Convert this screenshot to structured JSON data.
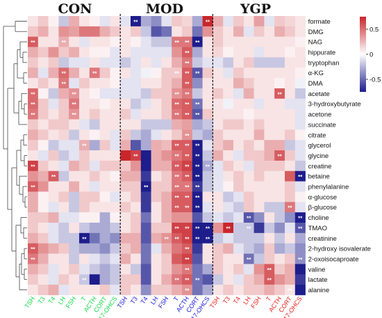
{
  "chart_data": {
    "type": "heatmap",
    "groups": [
      {
        "name": "CON",
        "color": "#17d94a"
      },
      {
        "name": "MOD",
        "color": "#1a1ad6"
      },
      {
        "name": "YGP",
        "color": "#e8231f"
      }
    ],
    "columns": [
      "TSH",
      "T3",
      "T4",
      "LH",
      "FSH",
      "T",
      "ACTH",
      "CORT",
      "17-OHCS"
    ],
    "rows": [
      "formate",
      "DMG",
      "NAG",
      "hippurate",
      "tryptophan",
      "α-KG",
      "DMA",
      "acetate",
      "3-hydroxybutyrate",
      "acetone",
      "succinate",
      "citrate",
      "glycerol",
      "glycine",
      "creatine",
      "betaine",
      "phenylalanine",
      "α-glucose",
      "β-glucose",
      "choline",
      "TMAO",
      "creatinine",
      "2-hydroxy isovalerate",
      "2-oxoisocaproate",
      "valine",
      "lactate",
      "alanine"
    ],
    "colorbar": {
      "ticks": [
        "0.5",
        "0",
        "-0.5"
      ],
      "min": -0.8,
      "max": 0.8,
      "colors": [
        "#1d1d8c",
        "#ffffff",
        "#c8262b"
      ]
    },
    "star_label": "*",
    "values": [
      [
        0.1,
        0.2,
        0.05,
        -0.2,
        0.3,
        0.1,
        0.05,
        -0.1,
        0.1,
        -0.1,
        -1.0,
        -0.3,
        -0.4,
        -0.1,
        0.2,
        0.15,
        -0.3,
        0.8,
        0.3,
        -0.1,
        0.2,
        0.1,
        0.35,
        -0.1,
        0.2,
        0.15,
        0.1
      ],
      [
        0.2,
        0.3,
        0.1,
        0.4,
        0.35,
        0.5,
        0.5,
        0.3,
        0.2,
        0.1,
        0.2,
        -0.2,
        -0.6,
        -0.5,
        0.1,
        0.2,
        -0.5,
        0.4,
        0.2,
        0.1,
        0.3,
        -0.1,
        0.2,
        0.1,
        0.3,
        0.2,
        0.1
      ],
      [
        0.6,
        0.1,
        0.1,
        0.3,
        0.1,
        -0.1,
        0.1,
        0.1,
        0.05,
        0.1,
        0.05,
        -0.1,
        -0.2,
        -0.2,
        0.5,
        0.5,
        -0.8,
        0.1,
        0.2,
        0.1,
        0.1,
        0.1,
        0.1,
        0.1,
        0.1,
        0.1,
        0.05
      ],
      [
        0.3,
        0.2,
        0.4,
        0.2,
        0.3,
        0.1,
        0.05,
        0.05,
        -0.1,
        0.1,
        -0.1,
        -0.1,
        -0.1,
        -0.1,
        0.4,
        0.6,
        -0.3,
        0.1,
        0.15,
        0.05,
        0.1,
        0.1,
        -0.1,
        0.1,
        0.1,
        0.05,
        0.1
      ],
      [
        0.2,
        0.1,
        0.2,
        -0.2,
        -0.1,
        -0.1,
        0.1,
        -0.1,
        -0.1,
        -0.2,
        -0.1,
        0.1,
        -0.1,
        0.1,
        0.3,
        0.5,
        -0.2,
        -0.1,
        -0.1,
        -0.2,
        0.1,
        0.2,
        -0.2,
        -0.2,
        -0.2,
        0.1,
        0.1
      ],
      [
        0.3,
        -0.1,
        0.3,
        0.55,
        0.3,
        0.1,
        0.5,
        0.2,
        0.05,
        0.1,
        -0.1,
        -0.05,
        0.05,
        0.2,
        0.2,
        0.6,
        -0.6,
        0.2,
        0.1,
        -0.1,
        0.2,
        0.1,
        0.1,
        0.1,
        0.1,
        0.1,
        0.05
      ],
      [
        0.1,
        0.2,
        0.1,
        0.5,
        -0.1,
        0.2,
        0.1,
        0.1,
        0.05,
        -0.1,
        -0.1,
        0.1,
        0.1,
        0.2,
        0.3,
        0.6,
        -0.4,
        0.1,
        0.1,
        0.1,
        0.3,
        0.2,
        0.1,
        0.1,
        0.05,
        0.1,
        -0.05
      ],
      [
        0.55,
        0.05,
        -0.2,
        0.3,
        0.4,
        0.1,
        0.05,
        -0.1,
        -0.1,
        -0.1,
        -0.1,
        -0.2,
        0.2,
        0.2,
        0.4,
        0.5,
        -0.2,
        0.1,
        0.2,
        0.1,
        -0.1,
        0.3,
        0.1,
        0.1,
        0.6,
        0.1,
        -0.2
      ],
      [
        0.55,
        0.2,
        -0.1,
        0.2,
        0.5,
        0.1,
        0.1,
        0.05,
        0.1,
        0.1,
        -0.2,
        -0.1,
        0.1,
        0.2,
        0.55,
        0.6,
        -0.5,
        0.1,
        0.1,
        -0.05,
        0.1,
        0.1,
        -0.1,
        0.1,
        0.1,
        -0.1,
        -0.1
      ],
      [
        0.5,
        0.2,
        0.1,
        0.2,
        0.4,
        0.1,
        0.2,
        0.1,
        0.1,
        0.2,
        -0.1,
        0.1,
        0.1,
        0.2,
        0.5,
        0.6,
        -0.6,
        0.2,
        0.1,
        0.1,
        0.1,
        0.05,
        0.1,
        0.1,
        0.1,
        0.1,
        -0.1
      ],
      [
        0.2,
        0.1,
        0.2,
        0.2,
        0.1,
        -0.1,
        -0.2,
        0.1,
        0.1,
        0.1,
        0.1,
        -0.2,
        -0.2,
        -0.2,
        0.3,
        0.35,
        -0.3,
        -0.2,
        0.1,
        0.2,
        0.2,
        0.1,
        0.2,
        0.1,
        0.1,
        0.1,
        -0.1
      ],
      [
        0.3,
        0.2,
        0.1,
        0.15,
        -0.2,
        0.1,
        0.05,
        0.1,
        -0.1,
        0.2,
        -0.2,
        -0.3,
        -0.1,
        0.1,
        0.2,
        0.4,
        -0.2,
        -0.3,
        0.2,
        0.1,
        0.1,
        0.1,
        0.3,
        0.1,
        0.1,
        0.2,
        0.05
      ],
      [
        0.2,
        0.05,
        -0.2,
        -0.1,
        -0.1,
        0.3,
        -0.3,
        0.2,
        -0.1,
        0.3,
        -0.6,
        -0.3,
        0.3,
        0.25,
        0.6,
        0.6,
        -0.8,
        -0.1,
        0.2,
        0.3,
        0.1,
        0.2,
        0.1,
        0.3,
        0.3,
        -0.2,
        -0.1
      ],
      [
        0.1,
        -0.1,
        0.2,
        -0.2,
        -0.1,
        0.2,
        0.1,
        0.1,
        0.1,
        0.8,
        0.7,
        -0.8,
        0.3,
        0.4,
        0.5,
        0.6,
        -0.9,
        -0.2,
        0.3,
        0.1,
        -0.1,
        0.2,
        0.2,
        0.3,
        0.6,
        0.2,
        -0.1
      ],
      [
        0.7,
        0.2,
        0.1,
        -0.1,
        0.3,
        0.2,
        -0.1,
        0.2,
        0.2,
        0.2,
        0.4,
        -0.8,
        0.3,
        0.3,
        0.6,
        0.7,
        -0.9,
        -0.3,
        -0.1,
        0.2,
        0.1,
        -0.1,
        0.2,
        0.2,
        0.2,
        0.1,
        -0.2
      ],
      [
        0.4,
        0.3,
        0.6,
        -0.2,
        0.1,
        0.1,
        0.2,
        0.1,
        0.05,
        0.3,
        0.3,
        -0.7,
        0.1,
        0.2,
        0.5,
        0.6,
        -0.8,
        -0.2,
        -0.1,
        0.1,
        0.2,
        0.1,
        0.2,
        0.1,
        0.1,
        0.6,
        -0.9
      ],
      [
        0.6,
        0.4,
        0.1,
        0.1,
        0.3,
        0.1,
        -0.1,
        0.1,
        0.1,
        0.2,
        0.2,
        -0.8,
        0.2,
        0.2,
        0.5,
        0.5,
        -0.7,
        -0.2,
        -0.1,
        0.05,
        0.2,
        0.1,
        0.1,
        0.1,
        0.1,
        0.2,
        -0.1
      ],
      [
        0.3,
        0.05,
        0.1,
        0.2,
        -0.2,
        0.2,
        0.2,
        0.05,
        -0.1,
        0.1,
        0.2,
        -0.7,
        0.2,
        0.3,
        0.6,
        0.6,
        -0.8,
        0.1,
        0.1,
        -0.2,
        -0.1,
        0.2,
        0.1,
        0.1,
        0.1,
        0.2,
        0.05
      ],
      [
        0.3,
        0.05,
        -0.1,
        0.1,
        -0.2,
        0.2,
        0.1,
        0.1,
        0.1,
        0.2,
        0.1,
        -0.7,
        0.1,
        0.3,
        0.6,
        0.6,
        -0.8,
        -0.1,
        0.1,
        -0.1,
        -0.2,
        0.2,
        0.1,
        -0.2,
        -0.2,
        0.5,
        -0.1
      ],
      [
        0.2,
        0.2,
        0.3,
        -0.1,
        -0.1,
        0.05,
        0.05,
        -0.3,
        0.05,
        0.1,
        0.2,
        -0.5,
        0.1,
        0.3,
        0.4,
        0.4,
        -0.6,
        -0.2,
        -0.1,
        -0.2,
        -0.1,
        -0.6,
        -0.4,
        0.1,
        -0.2,
        -0.4,
        -0.9
      ],
      [
        0.2,
        0.1,
        -0.1,
        -0.2,
        0.1,
        -0.2,
        -0.3,
        -0.3,
        -0.2,
        0.1,
        0.2,
        -0.6,
        0.2,
        0.2,
        0.7,
        0.7,
        -0.9,
        -0.9,
        0.4,
        0.9,
        -0.2,
        -0.2,
        -0.7,
        -0.2,
        -0.4,
        -0.1,
        -0.6
      ],
      [
        0.3,
        0.2,
        -0.1,
        -0.2,
        -0.2,
        -1.0,
        -0.5,
        -0.3,
        -0.4,
        0.3,
        0.3,
        -0.6,
        0.3,
        0.4,
        0.6,
        0.7,
        -0.9,
        -0.8,
        -0.2,
        -0.1,
        -0.2,
        -0.2,
        -0.2,
        0.1,
        -0.2,
        0.1,
        -0.3
      ],
      [
        0.6,
        0.4,
        0.3,
        0.2,
        -0.2,
        -0.3,
        -0.3,
        -0.4,
        -0.2,
        0.2,
        0.3,
        -0.5,
        -0.1,
        0.3,
        0.5,
        0.6,
        -0.7,
        0.1,
        0.2,
        0.3,
        -0.1,
        -0.2,
        -0.3,
        0.2,
        -0.3,
        -0.2,
        -0.4
      ],
      [
        0.5,
        0.3,
        0.1,
        0.1,
        -0.2,
        0.1,
        -0.1,
        -0.2,
        -0.1,
        0.3,
        0.1,
        -0.5,
        0.1,
        0.2,
        0.6,
        0.7,
        -0.6,
        0.1,
        0.2,
        0.1,
        0.1,
        -0.5,
        -0.2,
        0.2,
        0.1,
        0.2,
        -0.4
      ],
      [
        0.3,
        0.2,
        -0.1,
        0.1,
        0.2,
        -0.1,
        -0.2,
        -0.3,
        -0.2,
        0.1,
        -0.2,
        -0.6,
        0.1,
        0.2,
        0.4,
        0.5,
        -0.5,
        -0.3,
        0.2,
        0.1,
        0.2,
        -0.1,
        0.4,
        0.6,
        0.2,
        0.3,
        -0.8
      ],
      [
        0.2,
        0.1,
        -0.1,
        0.2,
        0.1,
        -0.2,
        -1.0,
        -0.3,
        -0.2,
        0.2,
        0.2,
        -0.6,
        0.1,
        0.3,
        0.5,
        0.6,
        -0.5,
        -0.6,
        -0.2,
        0.1,
        -0.1,
        0.2,
        0.3,
        0.6,
        0.4,
        0.3,
        -0.7
      ],
      [
        0.1,
        0.2,
        0.3,
        -0.1,
        0.1,
        0.1,
        0.1,
        0.2,
        -0.1,
        0.2,
        0.1,
        -0.4,
        0.2,
        0.2,
        0.3,
        0.4,
        -0.5,
        -0.3,
        0.1,
        0.2,
        0.1,
        0.2,
        0.2,
        0.3,
        0.2,
        0.1,
        -0.9
      ]
    ],
    "stars": [
      [
        0,
        10
      ],
      [
        0,
        17
      ],
      [
        2,
        0
      ],
      [
        2,
        3
      ],
      [
        2,
        14
      ],
      [
        2,
        15
      ],
      [
        2,
        16
      ],
      [
        3,
        15
      ],
      [
        4,
        15
      ],
      [
        5,
        3
      ],
      [
        5,
        6
      ],
      [
        5,
        14
      ],
      [
        5,
        15
      ],
      [
        5,
        16
      ],
      [
        6,
        3
      ],
      [
        6,
        15
      ],
      [
        7,
        0
      ],
      [
        7,
        4
      ],
      [
        7,
        14
      ],
      [
        7,
        15
      ],
      [
        7,
        24
      ],
      [
        8,
        0
      ],
      [
        8,
        4
      ],
      [
        8,
        14
      ],
      [
        8,
        15
      ],
      [
        8,
        16
      ],
      [
        9,
        0
      ],
      [
        9,
        4
      ],
      [
        9,
        14
      ],
      [
        9,
        15
      ],
      [
        9,
        16
      ],
      [
        11,
        15
      ],
      [
        12,
        5
      ],
      [
        12,
        14
      ],
      [
        12,
        15
      ],
      [
        12,
        16
      ],
      [
        13,
        10
      ],
      [
        13,
        14
      ],
      [
        13,
        15
      ],
      [
        13,
        16
      ],
      [
        13,
        24
      ],
      [
        14,
        0
      ],
      [
        14,
        14
      ],
      [
        14,
        15
      ],
      [
        14,
        16
      ],
      [
        14,
        17
      ],
      [
        15,
        2
      ],
      [
        15,
        14
      ],
      [
        15,
        15
      ],
      [
        15,
        16
      ],
      [
        15,
        26
      ],
      [
        16,
        0
      ],
      [
        16,
        11
      ],
      [
        16,
        14
      ],
      [
        16,
        15
      ],
      [
        16,
        16
      ],
      [
        17,
        14
      ],
      [
        17,
        15
      ],
      [
        17,
        16
      ],
      [
        18,
        14
      ],
      [
        18,
        15
      ],
      [
        18,
        16
      ],
      [
        18,
        25
      ],
      [
        19,
        21
      ],
      [
        19,
        26
      ],
      [
        20,
        14
      ],
      [
        20,
        15
      ],
      [
        20,
        16
      ],
      [
        20,
        17
      ],
      [
        20,
        19
      ],
      [
        20,
        21
      ],
      [
        20,
        26
      ],
      [
        21,
        5
      ],
      [
        21,
        13
      ],
      [
        21,
        14
      ],
      [
        21,
        15
      ],
      [
        21,
        16
      ],
      [
        21,
        17
      ],
      [
        22,
        0
      ],
      [
        22,
        15
      ],
      [
        23,
        0
      ],
      [
        23,
        15
      ],
      [
        23,
        21
      ],
      [
        23,
        26
      ],
      [
        24,
        15
      ],
      [
        24,
        23
      ],
      [
        25,
        5
      ],
      [
        25,
        14
      ],
      [
        25,
        15
      ],
      [
        25,
        16
      ],
      [
        25,
        23
      ],
      [
        26,
        15
      ],
      [
        26,
        25
      ]
    ]
  }
}
